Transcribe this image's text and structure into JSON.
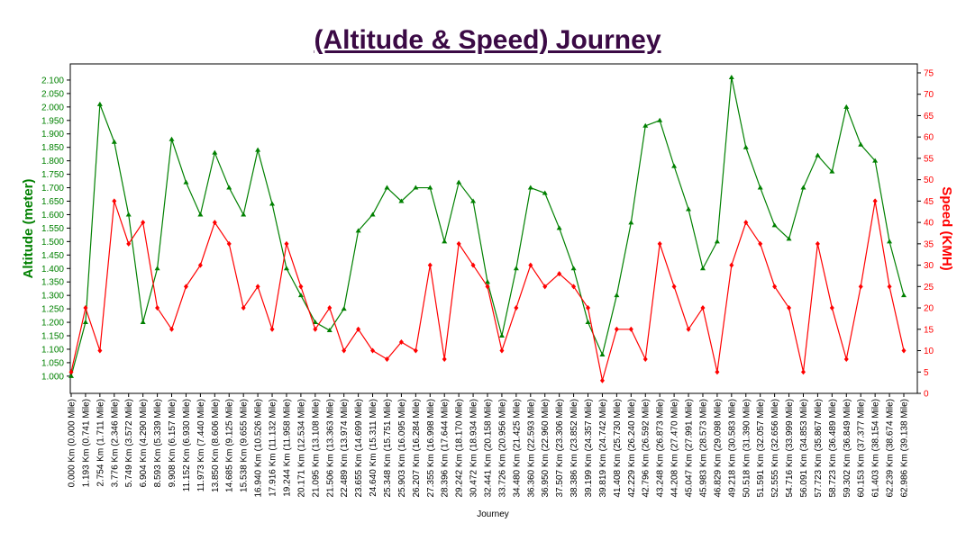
{
  "chart_data": {
    "type": "line",
    "title": "(Altitude & Speed) Journey",
    "x_label": "Journey",
    "y_label": "Altitude (meter)",
    "y2_label": "Speed (KMH)",
    "categories": [
      "0.000 Km (0.000 Mile)",
      "1.193 Km (0.741 Mile)",
      "2.754 Km (1.711 Mile)",
      "3.776 Km (2.346 Mile)",
      "5.749 Km (3.572 Mile)",
      "6.904 Km (4.290 Mile)",
      "8.593 Km (5.339 Mile)",
      "9.908 Km (6.157 Mile)",
      "11.152 Km (6.930 Mile)",
      "11.973 Km (7.440 Mile)",
      "13.850 Km (8.606 Mile)",
      "14.685 Km (9.125 Mile)",
      "15.538 Km (9.655 Mile)",
      "16.940 Km (10.526 Mile)",
      "17.916 Km (11.132 Mile)",
      "19.244 Km (11.958 Mile)",
      "20.171 Km (12.534 Mile)",
      "21.095 Km (13.108 Mile)",
      "21.506 Km (13.363 Mile)",
      "22.489 Km (13.974 Mile)",
      "23.655 Km (14.699 Mile)",
      "24.640 Km (15.311 Mile)",
      "25.348 Km (15.751 Mile)",
      "25.903 Km (16.095 Mile)",
      "26.207 Km (16.284 Mile)",
      "27.355 Km (16.998 Mile)",
      "28.396 Km (17.644 Mile)",
      "29.242 Km (18.170 Mile)",
      "30.472 Km (18.934 Mile)",
      "32.441 Km (20.158 Mile)",
      "33.726 Km (20.956 Mile)",
      "34.480 Km (21.425 Mile)",
      "36.360 Km (22.593 Mile)",
      "36.950 Km (22.960 Mile)",
      "37.507 Km (23.306 Mile)",
      "38.386 Km (23.852 Mile)",
      "39.199 Km (24.357 Mile)",
      "39.819 Km (24.742 Mile)",
      "41.408 Km (25.730 Mile)",
      "42.229 Km (26.240 Mile)",
      "42.796 Km (26.592 Mile)",
      "43.248 Km (26.873 Mile)",
      "44.208 Km (27.470 Mile)",
      "45.047 Km (27.991 Mile)",
      "45.983 Km (28.573 Mile)",
      "46.829 Km (29.098 Mile)",
      "49.218 Km (30.583 Mile)",
      "50.518 Km (31.390 Mile)",
      "51.591 Km (32.057 Mile)",
      "52.555 Km (32.656 Mile)",
      "54.716 Km (33.999 Mile)",
      "56.091 Km (34.853 Mile)",
      "57.723 Km (35.867 Mile)",
      "58.723 Km (36.489 Mile)",
      "59.302 Km (36.849 Mile)",
      "60.153 Km (37.377 Mile)",
      "61.403 Km (38.154 Mile)",
      "62.239 Km (38.674 Mile)",
      "62.986 Km (39.138 Mile)"
    ],
    "series": [
      {
        "name": "Altitude",
        "color": "#008000",
        "values": [
          1000,
          1200,
          2010,
          1870,
          1600,
          1200,
          1400,
          1880,
          1720,
          1600,
          1830,
          1700,
          1600,
          1840,
          1640,
          1400,
          1300,
          1200,
          1170,
          1250,
          1540,
          1600,
          1700,
          1650,
          1700,
          1700,
          1500,
          1720,
          1650,
          1350,
          1150,
          1400,
          1700,
          1680,
          1550,
          1400,
          1200,
          1080,
          1300,
          1570,
          1930,
          1950,
          1780,
          1620,
          1400,
          1500,
          2110,
          1850,
          1700,
          1560,
          1510,
          1700,
          1820,
          1760,
          2000,
          1860,
          1800,
          1500,
          1300
        ]
      },
      {
        "name": "Speed",
        "color": "#ff0000",
        "axis": "y2",
        "values": [
          5,
          20,
          10,
          45,
          35,
          40,
          20,
          15,
          25,
          30,
          40,
          35,
          20,
          25,
          15,
          35,
          25,
          15,
          20,
          10,
          15,
          10,
          8,
          12,
          10,
          30,
          8,
          35,
          30,
          25,
          10,
          20,
          30,
          25,
          28,
          25,
          20,
          3,
          15,
          15,
          8,
          35,
          25,
          15,
          20,
          5,
          30,
          40,
          35,
          25,
          20,
          5,
          35,
          20,
          8,
          25,
          45,
          25,
          10
        ]
      }
    ],
    "ylim": [
      936,
      2160
    ],
    "yticks": [
      {
        "value": 1000,
        "label": "1.000"
      },
      {
        "value": 1050,
        "label": "1.050"
      },
      {
        "value": 1100,
        "label": "1.100"
      },
      {
        "value": 1150,
        "label": "1.150"
      },
      {
        "value": 1200,
        "label": "1.200"
      },
      {
        "value": 1250,
        "label": "1.250"
      },
      {
        "value": 1300,
        "label": "1.300"
      },
      {
        "value": 1350,
        "label": "1.350"
      },
      {
        "value": 1400,
        "label": "1.400"
      },
      {
        "value": 1450,
        "label": "1.450"
      },
      {
        "value": 1500,
        "label": "1.500"
      },
      {
        "value": 1550,
        "label": "1.550"
      },
      {
        "value": 1600,
        "label": "1.600"
      },
      {
        "value": 1650,
        "label": "1.650"
      },
      {
        "value": 1700,
        "label": "1.700"
      },
      {
        "value": 1750,
        "label": "1.750"
      },
      {
        "value": 1800,
        "label": "1.800"
      },
      {
        "value": 1850,
        "label": "1.850"
      },
      {
        "value": 1900,
        "label": "1.900"
      },
      {
        "value": 1950,
        "label": "1.950"
      },
      {
        "value": 2000,
        "label": "2.000"
      },
      {
        "value": 2050,
        "label": "2.050"
      },
      {
        "value": 2100,
        "label": "2.100"
      }
    ],
    "y2lim": [
      0,
      77.1
    ],
    "y2ticks": [
      0,
      5,
      10,
      15,
      20,
      25,
      30,
      35,
      40,
      45,
      50,
      55,
      60,
      65,
      70,
      75
    ]
  }
}
